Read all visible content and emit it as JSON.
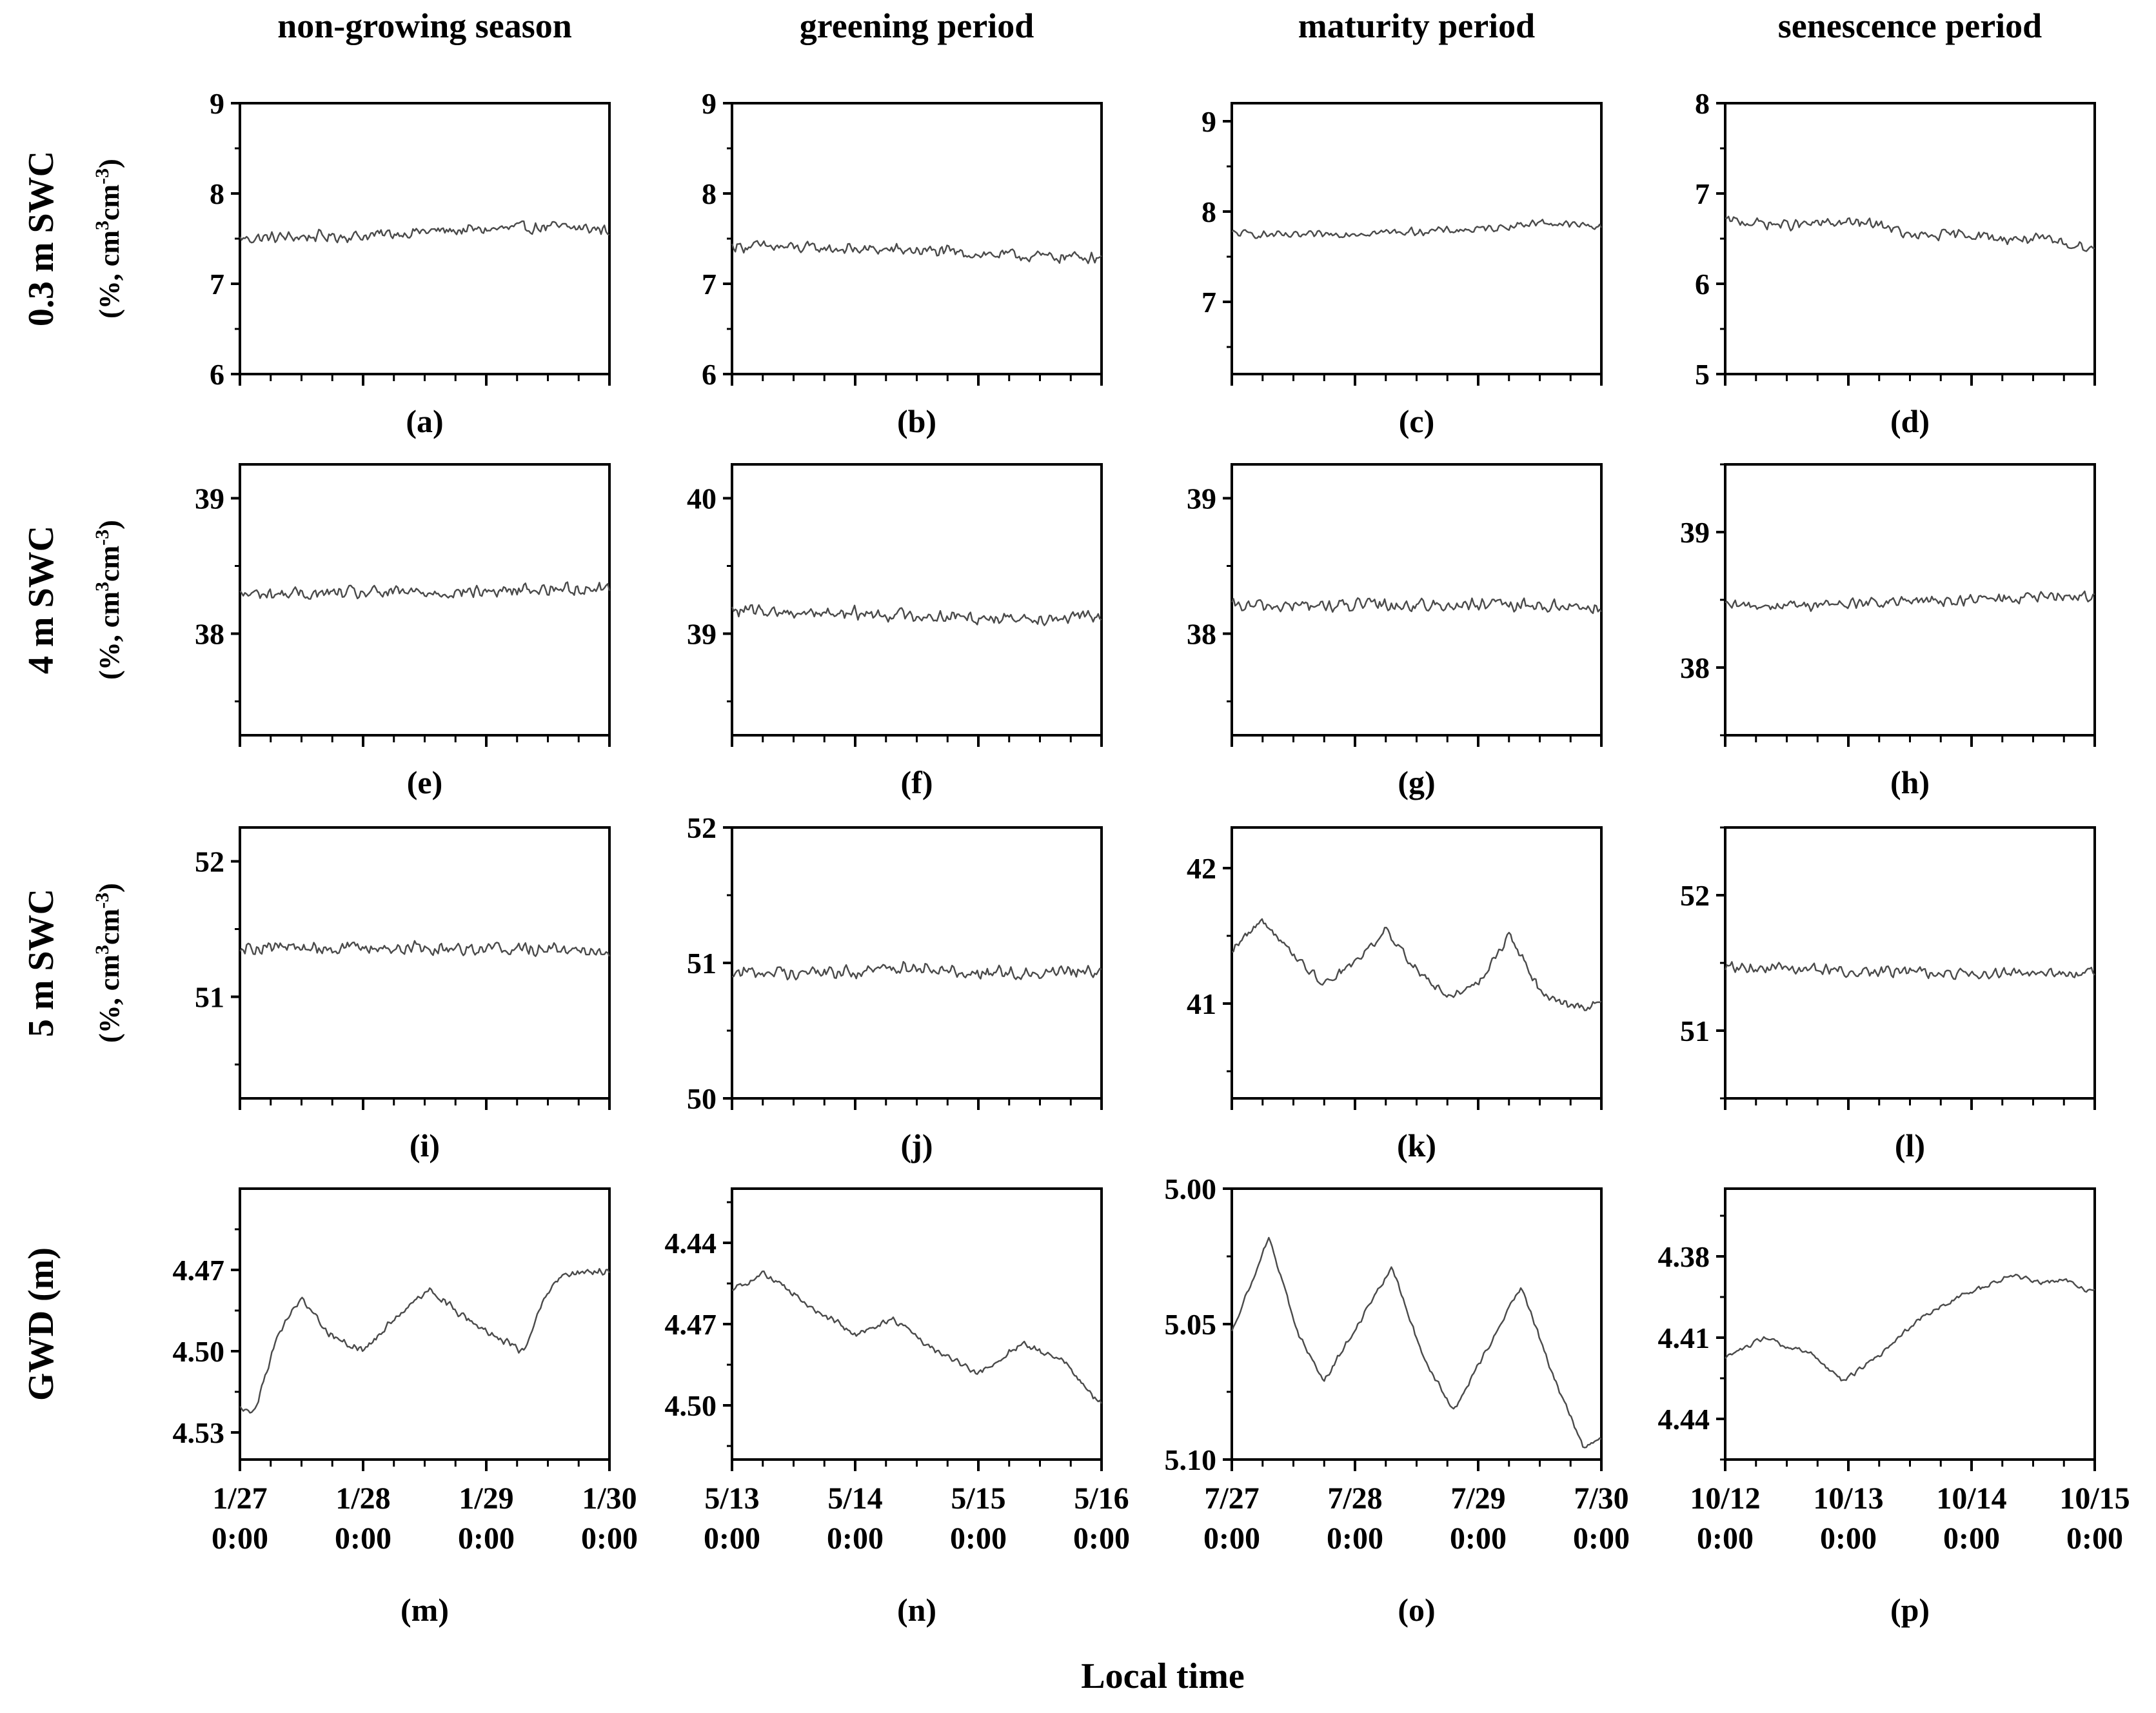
{
  "figure": {
    "x_axis_title": "Local time",
    "columns": [
      "non-growing season",
      "greening period",
      "maturity period",
      "senescence period"
    ],
    "rows": [
      {
        "label": "0.3 m SWC",
        "unit_prefix": "(%, cm",
        "unit_mid": "cm",
        "unit_sup1": "3",
        "unit_sup2": "-3"
      },
      {
        "label": "4 m SWC",
        "unit_prefix": "(%, cm",
        "unit_mid": "cm",
        "unit_sup1": "3",
        "unit_sup2": "-3"
      },
      {
        "label": "5 m SWC",
        "unit_prefix": "(%, cm",
        "unit_mid": "cm",
        "unit_sup1": "3",
        "unit_sup2": "-3"
      },
      {
        "label": "GWD (m)"
      }
    ],
    "colors": {
      "line": "#4a4a4a",
      "axis": "#000000"
    }
  },
  "chart_data": [
    {
      "panel": "(a)",
      "type": "line",
      "series": "0.3 m SWC",
      "period": "non-growing season",
      "ylabel": "0.3 m SWC (%, cm3cm-3)",
      "ylim": [
        6,
        9
      ],
      "yticks": [
        6,
        7,
        8,
        9
      ],
      "ytick_labels": [
        "6",
        "7",
        "8",
        "9"
      ],
      "x_days": 3,
      "x_ticks": [
        "1/27 0:00",
        "1/28 0:00",
        "1/29 0:00",
        "1/30 0:00"
      ],
      "trend": [
        [
          0,
          7.5
        ],
        [
          0.5,
          7.52
        ],
        [
          1,
          7.53
        ],
        [
          1.5,
          7.58
        ],
        [
          2,
          7.6
        ],
        [
          2.5,
          7.63
        ],
        [
          3,
          7.6
        ]
      ],
      "noise": 0.08,
      "inverted": false
    },
    {
      "panel": "(b)",
      "type": "line",
      "series": "0.3 m SWC",
      "period": "greening period",
      "ylabel": "0.3 m SWC (%, cm3cm-3)",
      "ylim": [
        6,
        9
      ],
      "yticks": [
        6,
        7,
        8,
        9
      ],
      "ytick_labels": [
        "6",
        "7",
        "8",
        "9"
      ],
      "x_days": 3,
      "x_ticks": [
        "5/13 0:00",
        "5/14 0:00",
        "5/15 0:00",
        "5/16 0:00"
      ],
      "trend": [
        [
          0,
          7.42
        ],
        [
          0.5,
          7.4
        ],
        [
          1,
          7.38
        ],
        [
          1.5,
          7.37
        ],
        [
          2,
          7.33
        ],
        [
          2.5,
          7.3
        ],
        [
          3,
          7.3
        ]
      ],
      "noise": 0.08,
      "inverted": false
    },
    {
      "panel": "(c)",
      "type": "line",
      "series": "0.3 m SWC",
      "period": "maturity period",
      "ylabel": "0.3 m SWC (%, cm3cm-3)",
      "ylim": [
        6.2,
        9.2
      ],
      "yticks": [
        7,
        8,
        9
      ],
      "ytick_labels": [
        "7",
        "8",
        "9"
      ],
      "x_days": 3,
      "x_ticks": [
        "7/27 0:00",
        "7/28 0:00",
        "7/29 0:00",
        "7/30 0:00"
      ],
      "trend": [
        [
          0,
          7.76
        ],
        [
          0.5,
          7.73
        ],
        [
          1,
          7.76
        ],
        [
          1.5,
          7.78
        ],
        [
          2,
          7.8
        ],
        [
          2.5,
          7.88
        ],
        [
          3,
          7.83
        ]
      ],
      "noise": 0.05,
      "inverted": false
    },
    {
      "panel": "(d)",
      "type": "line",
      "series": "0.3 m SWC",
      "period": "senescence period",
      "ylabel": "0.3 m SWC (%, cm3cm-3)",
      "ylim": [
        5,
        8
      ],
      "yticks": [
        5,
        6,
        7,
        8
      ],
      "ytick_labels": [
        "5",
        "6",
        "7",
        "8"
      ],
      "x_days": 3,
      "x_ticks": [
        "10/12 0:00",
        "10/13 0:00",
        "10/14 0:00",
        "10/15 0:00"
      ],
      "trend": [
        [
          0,
          6.7
        ],
        [
          0.5,
          6.65
        ],
        [
          1,
          6.68
        ],
        [
          1.3,
          6.65
        ],
        [
          1.5,
          6.52
        ],
        [
          2,
          6.55
        ],
        [
          2.2,
          6.5
        ],
        [
          2.5,
          6.5
        ],
        [
          3,
          6.4
        ]
      ],
      "noise": 0.07,
      "inverted": false
    },
    {
      "panel": "(e)",
      "type": "line",
      "series": "4 m SWC",
      "period": "non-growing season",
      "ylabel": "4 m SWC (%, cm3cm-3)",
      "ylim": [
        37.25,
        39.25
      ],
      "yticks": [
        38,
        39
      ],
      "ytick_labels": [
        "38",
        "39"
      ],
      "x_days": 3,
      "x_ticks": [
        "1/27 0:00",
        "1/28 0:00",
        "1/29 0:00",
        "1/30 0:00"
      ],
      "trend": [
        [
          0,
          38.29
        ],
        [
          1,
          38.3
        ],
        [
          2,
          38.31
        ],
        [
          2.5,
          38.33
        ],
        [
          3,
          38.34
        ]
      ],
      "noise": 0.06,
      "inverted": false
    },
    {
      "panel": "(f)",
      "type": "line",
      "series": "4 m SWC",
      "period": "greening period",
      "ylabel": "4 m SWC (%, cm3cm-3)",
      "ylim": [
        38.25,
        40.25
      ],
      "yticks": [
        39,
        40
      ],
      "ytick_labels": [
        "39",
        "40"
      ],
      "x_days": 3,
      "x_ticks": [
        "5/13 0:00",
        "5/14 0:00",
        "5/15 0:00",
        "5/16 0:00"
      ],
      "trend": [
        [
          0,
          39.17
        ],
        [
          1,
          39.15
        ],
        [
          2,
          39.12
        ],
        [
          3,
          39.12
        ]
      ],
      "noise": 0.06,
      "inverted": false
    },
    {
      "panel": "(g)",
      "type": "line",
      "series": "4 m SWC",
      "period": "maturity period",
      "ylabel": "4 m SWC (%, cm3cm-3)",
      "ylim": [
        37.25,
        39.25
      ],
      "yticks": [
        38,
        39
      ],
      "ytick_labels": [
        "38",
        "39"
      ],
      "x_days": 3,
      "x_ticks": [
        "7/27 0:00",
        "7/28 0:00",
        "7/29 0:00",
        "7/30 0:00"
      ],
      "trend": [
        [
          0,
          38.2
        ],
        [
          1,
          38.21
        ],
        [
          2,
          38.21
        ],
        [
          3,
          38.2
        ]
      ],
      "noise": 0.06,
      "inverted": false
    },
    {
      "panel": "(h)",
      "type": "line",
      "series": "4 m SWC",
      "period": "senescence period",
      "ylabel": "4 m SWC (%, cm3cm-3)",
      "ylim": [
        37.5,
        39.5
      ],
      "yticks": [
        38,
        39
      ],
      "ytick_labels": [
        "38",
        "39"
      ],
      "x_days": 3,
      "x_ticks": [
        "10/12 0:00",
        "10/13 0:00",
        "10/14 0:00",
        "10/15 0:00"
      ],
      "trend": [
        [
          0,
          38.45
        ],
        [
          1,
          38.47
        ],
        [
          2,
          38.5
        ],
        [
          3,
          38.53
        ]
      ],
      "noise": 0.05,
      "inverted": false
    },
    {
      "panel": "(i)",
      "type": "line",
      "series": "5 m SWC",
      "period": "non-growing season",
      "ylabel": "5 m SWC (%, cm3cm-3)",
      "ylim": [
        50.25,
        52.25
      ],
      "yticks": [
        51,
        52
      ],
      "ytick_labels": [
        "51",
        "52"
      ],
      "x_days": 3,
      "x_ticks": [
        "1/27 0:00",
        "1/28 0:00",
        "1/29 0:00",
        "1/30 0:00"
      ],
      "trend": [
        [
          0,
          51.37
        ],
        [
          1,
          51.36
        ],
        [
          2,
          51.36
        ],
        [
          3,
          51.35
        ]
      ],
      "noise": 0.06,
      "inverted": false
    },
    {
      "panel": "(j)",
      "type": "line",
      "series": "5 m SWC",
      "period": "greening period",
      "ylabel": "5 m SWC (%, cm3cm-3)",
      "ylim": [
        50,
        52
      ],
      "yticks": [
        50,
        51,
        52
      ],
      "ytick_labels": [
        "50",
        "51",
        "52"
      ],
      "x_days": 3,
      "x_ticks": [
        "5/13 0:00",
        "5/14 0:00",
        "5/15 0:00",
        "5/16 0:00"
      ],
      "trend": [
        [
          0,
          50.93
        ],
        [
          1,
          50.93
        ],
        [
          1.5,
          50.98
        ],
        [
          2,
          50.92
        ],
        [
          3,
          50.95
        ]
      ],
      "noise": 0.06,
      "inverted": false
    },
    {
      "panel": "(k)",
      "type": "line",
      "series": "5 m SWC",
      "period": "maturity period",
      "ylabel": "5 m SWC (%, cm3cm-3)",
      "ylim": [
        40.3,
        42.3
      ],
      "yticks": [
        41,
        42
      ],
      "ytick_labels": [
        "41",
        "42"
      ],
      "x_days": 3,
      "x_ticks": [
        "7/27 0:00",
        "7/28 0:00",
        "7/29 0:00",
        "7/30 0:00"
      ],
      "trend": [
        [
          0,
          41.4
        ],
        [
          0.25,
          41.62
        ],
        [
          0.5,
          41.35
        ],
        [
          0.75,
          41.15
        ],
        [
          1.0,
          41.3
        ],
        [
          1.25,
          41.55
        ],
        [
          1.5,
          41.25
        ],
        [
          1.75,
          41.05
        ],
        [
          2.0,
          41.15
        ],
        [
          2.25,
          41.5
        ],
        [
          2.5,
          41.1
        ],
        [
          2.75,
          40.98
        ],
        [
          3,
          40.98
        ]
      ],
      "noise": 0.04,
      "inverted": false
    },
    {
      "panel": "(l)",
      "type": "line",
      "series": "5 m SWC",
      "period": "senescence period",
      "ylabel": "5 m SWC (%, cm3cm-3)",
      "ylim": [
        50.5,
        52.5
      ],
      "yticks": [
        51,
        52
      ],
      "ytick_labels": [
        "51",
        "52"
      ],
      "x_days": 3,
      "x_ticks": [
        "10/12 0:00",
        "10/13 0:00",
        "10/14 0:00",
        "10/15 0:00"
      ],
      "trend": [
        [
          0,
          51.47
        ],
        [
          1,
          51.44
        ],
        [
          2,
          51.42
        ],
        [
          3,
          51.42
        ]
      ],
      "noise": 0.05,
      "inverted": false
    },
    {
      "panel": "(m)",
      "type": "line",
      "series": "GWD (m)",
      "period": "non-growing season",
      "ylabel": "GWD (m)",
      "ylim": [
        4.44,
        4.54
      ],
      "yticks": [
        4.47,
        4.5,
        4.53
      ],
      "ytick_labels": [
        "4.47",
        "4.50",
        "4.53"
      ],
      "x_days": 3,
      "x_ticks": [
        "1/27 0:00",
        "1/28 0:00",
        "1/29 0:00",
        "1/30 0:00"
      ],
      "trend": [
        [
          0,
          4.521
        ],
        [
          0.12,
          4.522
        ],
        [
          0.3,
          4.495
        ],
        [
          0.5,
          4.48
        ],
        [
          0.7,
          4.493
        ],
        [
          1.0,
          4.5
        ],
        [
          1.3,
          4.486
        ],
        [
          1.55,
          4.477
        ],
        [
          1.8,
          4.487
        ],
        [
          2.1,
          4.495
        ],
        [
          2.3,
          4.5
        ],
        [
          2.45,
          4.482
        ],
        [
          2.6,
          4.472
        ],
        [
          3.0,
          4.47
        ]
      ],
      "noise": 0.0016,
      "inverted": true
    },
    {
      "panel": "(n)",
      "type": "line",
      "series": "GWD (m)",
      "period": "greening period",
      "ylabel": "GWD (m)",
      "ylim": [
        4.42,
        4.52
      ],
      "yticks": [
        4.44,
        4.47,
        4.5
      ],
      "ytick_labels": [
        "4.44",
        "4.47",
        "4.50"
      ],
      "x_days": 3,
      "x_ticks": [
        "5/13 0:00",
        "5/14 0:00",
        "5/15 0:00",
        "5/16 0:00"
      ],
      "trend": [
        [
          0,
          4.458
        ],
        [
          0.25,
          4.451
        ],
        [
          0.6,
          4.462
        ],
        [
          1.0,
          4.474
        ],
        [
          1.3,
          4.468
        ],
        [
          1.6,
          4.478
        ],
        [
          2.0,
          4.488
        ],
        [
          2.35,
          4.477
        ],
        [
          2.7,
          4.484
        ],
        [
          3.0,
          4.5
        ]
      ],
      "noise": 0.0015,
      "inverted": true
    },
    {
      "panel": "(o)",
      "type": "line",
      "series": "GWD (m)",
      "period": "maturity period",
      "ylabel": "GWD (m)",
      "ylim": [
        5.0,
        5.1
      ],
      "yticks": [
        5.0,
        5.05,
        5.1
      ],
      "ytick_labels": [
        "5.00",
        "5.05",
        "5.10"
      ],
      "x_days": 3,
      "x_ticks": [
        "7/27 0:00",
        "7/28 0:00",
        "7/29 0:00",
        "7/30 0:00"
      ],
      "trend": [
        [
          0,
          5.053
        ],
        [
          0.3,
          5.018
        ],
        [
          0.55,
          5.055
        ],
        [
          0.75,
          5.071
        ],
        [
          1.3,
          5.029
        ],
        [
          1.55,
          5.062
        ],
        [
          1.8,
          5.082
        ],
        [
          2.35,
          5.036
        ],
        [
          2.6,
          5.068
        ],
        [
          2.85,
          5.095
        ],
        [
          3.0,
          5.092
        ]
      ],
      "noise": 0.0012,
      "inverted": true
    },
    {
      "panel": "(p)",
      "type": "line",
      "series": "GWD (m)",
      "period": "senescence period",
      "ylabel": "GWD (m)",
      "ylim": [
        4.355,
        4.455
      ],
      "yticks": [
        4.38,
        4.41,
        4.44
      ],
      "ytick_labels": [
        "4.38",
        "4.41",
        "4.44"
      ],
      "x_days": 3,
      "x_ticks": [
        "10/12 0:00",
        "10/13 0:00",
        "10/14 0:00",
        "10/15 0:00"
      ],
      "trend": [
        [
          0,
          4.418
        ],
        [
          0.3,
          4.41
        ],
        [
          0.7,
          4.416
        ],
        [
          0.95,
          4.426
        ],
        [
          1.3,
          4.415
        ],
        [
          1.6,
          4.402
        ],
        [
          2.0,
          4.393
        ],
        [
          2.35,
          4.387
        ],
        [
          2.6,
          4.39
        ],
        [
          2.75,
          4.388
        ],
        [
          2.9,
          4.392
        ]
      ],
      "noise": 0.0012,
      "inverted": true
    }
  ]
}
